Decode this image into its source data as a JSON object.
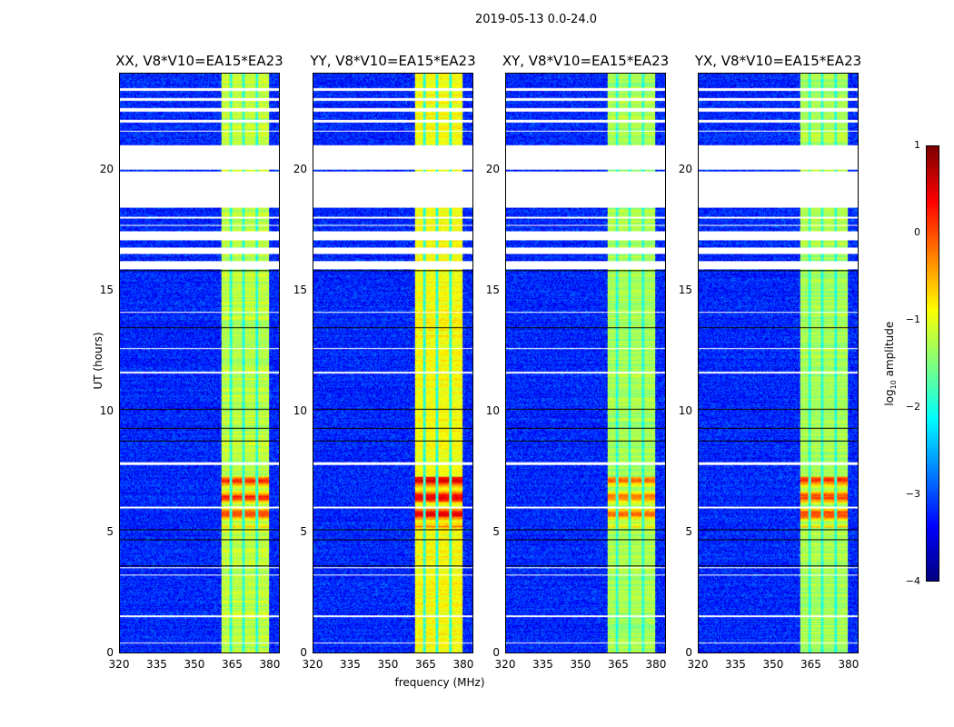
{
  "chart_data": {
    "type": "heatmap",
    "title": "2019-05-13 0.0-24.0",
    "xlabel": "frequency (MHz)",
    "ylabel": "UT (hours)",
    "xlim": [
      320,
      384
    ],
    "ylim": [
      0,
      24
    ],
    "xticks": [
      "320",
      "335",
      "350",
      "365",
      "380"
    ],
    "xtick_values": [
      320,
      335,
      350,
      365,
      380
    ],
    "yticks": [
      "0",
      "5",
      "10",
      "15",
      "20"
    ],
    "ytick_values": [
      0,
      5,
      10,
      15,
      20
    ],
    "panels": [
      {
        "title": "XX, V8*V10=EA15*EA23",
        "band_level": -1.2,
        "peak_level": 0.1
      },
      {
        "title": "YY, V8*V10=EA15*EA23",
        "band_level": -0.9,
        "peak_level": 0.5
      },
      {
        "title": "XY, V8*V10=EA15*EA23",
        "band_level": -1.3,
        "peak_level": -0.2
      },
      {
        "title": "YX, V8*V10=EA15*EA23",
        "band_level": -1.3,
        "peak_level": 0.1
      }
    ],
    "background_level": -3.2,
    "bright_band_mhz": [
      360.5,
      380
    ],
    "band_gaps_mhz": [
      364.5,
      369.5,
      375
    ],
    "peak_ut": [
      5.2,
      7.3
    ],
    "flagged_ut": [
      [
        23.3,
        23.4
      ],
      [
        22.9,
        23.0
      ],
      [
        22.45,
        22.6
      ],
      [
        22.0,
        22.1
      ],
      [
        21.6,
        21.65
      ],
      [
        20.05,
        21.05
      ],
      [
        18.45,
        19.95
      ],
      [
        18.0,
        18.1
      ],
      [
        17.7,
        17.75
      ],
      [
        17.1,
        17.5
      ],
      [
        16.55,
        16.8
      ],
      [
        15.9,
        16.25
      ],
      [
        14.1,
        14.15
      ],
      [
        12.6,
        12.65
      ],
      [
        11.6,
        11.65
      ],
      [
        7.8,
        7.9
      ],
      [
        6.0,
        6.05
      ],
      [
        3.5,
        3.55
      ],
      [
        3.2,
        3.25
      ],
      [
        1.5,
        1.55
      ],
      [
        0.4,
        0.45
      ]
    ],
    "black_lines_ut": [
      15.85,
      13.5,
      10.1,
      9.3,
      8.8,
      5.1,
      4.7,
      3.6
    ],
    "colorbar": {
      "label": "log10 amplitude",
      "range": [
        -4,
        1
      ],
      "ticks": [
        "1",
        "0",
        "−1",
        "−2",
        "−3",
        "−4"
      ],
      "tick_values": [
        1,
        0,
        -1,
        -2,
        -3,
        -4
      ],
      "colormap": "jet"
    }
  }
}
